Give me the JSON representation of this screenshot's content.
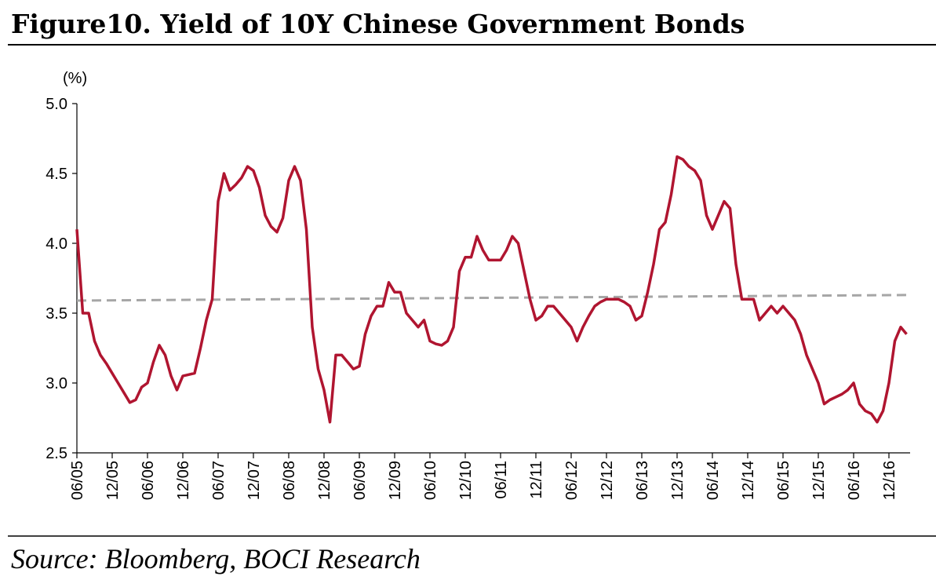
{
  "chart_data": {
    "type": "line",
    "title": "Figure10. Yield of 10Y Chinese Government Bonds",
    "y_label": "(%)",
    "source": "Source: Bloomberg, BOCI Research",
    "x": [
      "06/05",
      "07/05",
      "08/05",
      "09/05",
      "10/05",
      "11/05",
      "12/05",
      "01/06",
      "02/06",
      "03/06",
      "04/06",
      "05/06",
      "06/06",
      "07/06",
      "08/06",
      "09/06",
      "10/06",
      "11/06",
      "12/06",
      "01/07",
      "02/07",
      "03/07",
      "04/07",
      "05/07",
      "06/07",
      "07/07",
      "08/07",
      "09/07",
      "10/07",
      "11/07",
      "12/07",
      "01/08",
      "02/08",
      "03/08",
      "04/08",
      "05/08",
      "06/08",
      "07/08",
      "08/08",
      "09/08",
      "10/08",
      "11/08",
      "12/08",
      "01/09",
      "02/09",
      "03/09",
      "04/09",
      "05/09",
      "06/09",
      "07/09",
      "08/09",
      "09/09",
      "10/09",
      "11/09",
      "12/09",
      "01/10",
      "02/10",
      "03/10",
      "04/10",
      "05/10",
      "06/10",
      "07/10",
      "08/10",
      "09/10",
      "10/10",
      "11/10",
      "12/10",
      "01/11",
      "02/11",
      "03/11",
      "04/11",
      "05/11",
      "06/11",
      "07/11",
      "08/11",
      "09/11",
      "10/11",
      "11/11",
      "12/11",
      "01/12",
      "02/12",
      "03/12",
      "04/12",
      "05/12",
      "06/12",
      "07/12",
      "08/12",
      "09/12",
      "10/12",
      "11/12",
      "12/12",
      "01/13",
      "02/13",
      "03/13",
      "04/13",
      "05/13",
      "06/13",
      "07/13",
      "08/13",
      "09/13",
      "10/13",
      "11/13",
      "12/13",
      "01/14",
      "02/14",
      "03/14",
      "04/14",
      "05/14",
      "06/14",
      "07/14",
      "08/14",
      "09/14",
      "10/14",
      "11/14",
      "12/14",
      "01/15",
      "02/15",
      "03/15",
      "04/15",
      "05/15",
      "06/15",
      "07/15",
      "08/15",
      "09/15",
      "10/15",
      "11/15",
      "12/15",
      "01/16",
      "02/16",
      "03/16",
      "04/16",
      "05/16",
      "06/16",
      "07/16",
      "08/16",
      "09/16",
      "10/16",
      "11/16",
      "12/16",
      "01/17",
      "02/17",
      "03/17"
    ],
    "series": [
      {
        "color": "#b01530",
        "values": [
          4.1,
          3.5,
          3.5,
          3.3,
          3.2,
          3.14,
          3.07,
          3.0,
          2.93,
          2.86,
          2.88,
          2.97,
          3.0,
          3.15,
          3.27,
          3.2,
          3.05,
          2.95,
          3.05,
          3.06,
          3.07,
          3.25,
          3.45,
          3.6,
          4.3,
          4.5,
          4.38,
          4.42,
          4.47,
          4.55,
          4.52,
          4.4,
          4.2,
          4.12,
          4.08,
          4.18,
          4.45,
          4.55,
          4.45,
          4.1,
          3.4,
          3.1,
          2.95,
          2.72,
          3.2,
          3.2,
          3.15,
          3.1,
          3.12,
          3.35,
          3.48,
          3.55,
          3.55,
          3.72,
          3.65,
          3.65,
          3.5,
          3.45,
          3.4,
          3.45,
          3.3,
          3.28,
          3.27,
          3.3,
          3.4,
          3.8,
          3.9,
          3.9,
          4.05,
          3.95,
          3.88,
          3.88,
          3.88,
          3.95,
          4.05,
          4.0,
          3.8,
          3.6,
          3.45,
          3.48,
          3.55,
          3.55,
          3.5,
          3.45,
          3.4,
          3.3,
          3.4,
          3.48,
          3.55,
          3.58,
          3.6,
          3.6,
          3.6,
          3.58,
          3.55,
          3.45,
          3.48,
          3.65,
          3.85,
          4.1,
          4.15,
          4.35,
          4.62,
          4.6,
          4.55,
          4.52,
          4.45,
          4.2,
          4.1,
          4.2,
          4.3,
          4.25,
          3.85,
          3.6,
          3.6,
          3.6,
          3.45,
          3.5,
          3.55,
          3.5,
          3.55,
          3.5,
          3.45,
          3.35,
          3.2,
          3.1,
          3.0,
          2.85,
          2.88,
          2.9,
          2.92,
          2.95,
          3.0,
          2.85,
          2.8,
          2.78,
          2.72,
          2.8,
          3.0,
          3.3,
          3.4,
          3.35
        ]
      }
    ],
    "trend": {
      "values": [
        3.59,
        3.63
      ],
      "color": "#a6a6a6"
    },
    "xticks": [
      "06/05",
      "12/05",
      "06/06",
      "12/06",
      "06/07",
      "12/07",
      "06/08",
      "12/08",
      "06/09",
      "12/09",
      "06/10",
      "12/10",
      "06/11",
      "12/11",
      "06/12",
      "12/12",
      "06/13",
      "12/13",
      "06/14",
      "12/14",
      "06/15",
      "12/15",
      "06/16",
      "12/16"
    ],
    "ylim": [
      2.5,
      5.0
    ],
    "yticks": [
      2.5,
      {
        "value": 3.0,
        "label": "3.0"
      },
      3.5,
      {
        "value": 4.0,
        "label": "4.0"
      },
      4.5,
      {
        "value": 5.0,
        "label": "5.0"
      }
    ]
  }
}
